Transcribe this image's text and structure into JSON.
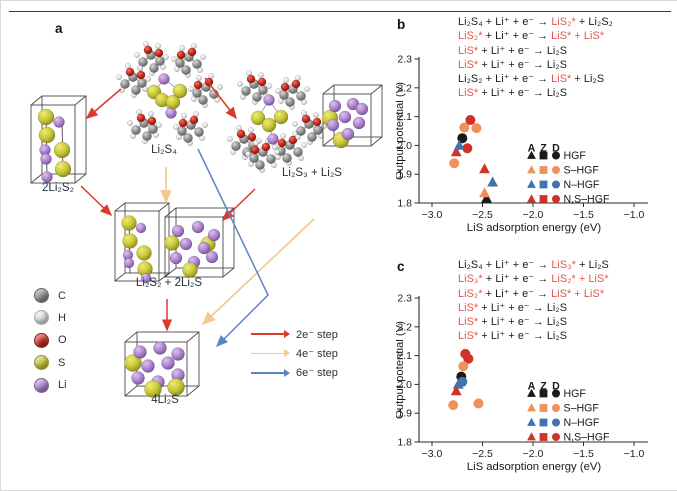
{
  "page": {
    "background": "#ffffff"
  },
  "colors": {
    "text_black": "#1a1a1a",
    "eq_red": "#E0564B",
    "label_dark": "#263238",
    "axis": "#2b2b2b",
    "hgf": "#1a1a1a",
    "s_hgf": "#F0915C",
    "n_hgf": "#4173AF",
    "ns_hgf": "#CF3327",
    "arrow_2e": "#D93A2B",
    "arrow_4e": "#F3C98F",
    "arrow_6e": "#5B84C7"
  },
  "panel_a": {
    "label": "a",
    "structure_labels": [
      {
        "id": "2li2s2",
        "text": "2Li₂S₂"
      },
      {
        "id": "li2s4",
        "text": "Li₂S₄"
      },
      {
        "id": "li2s3-li2s",
        "text": "Li₂S₃ + Li₂S"
      },
      {
        "id": "li2s2-2li2s",
        "text": "Li₂S₂ + 2Li₂S"
      },
      {
        "id": "4li2s",
        "text": "4Li₂S"
      }
    ],
    "atom_legend": [
      {
        "symbol": "C",
        "color": "#8E8E8E"
      },
      {
        "symbol": "H",
        "color": "#E3E3E3"
      },
      {
        "symbol": "O",
        "color": "#C6281C"
      },
      {
        "symbol": "S",
        "color": "#C9C838"
      },
      {
        "symbol": "Li",
        "color": "#AD85CE"
      }
    ],
    "arrow_legend": [
      {
        "label": "2e⁻ step",
        "color": "#D93A2B"
      },
      {
        "label": "4e⁻ step",
        "color": "#F3C98F"
      },
      {
        "label": "6e⁻ step",
        "color": "#5B84C7"
      }
    ]
  },
  "panel_b": {
    "label": "b"
  },
  "panel_c": {
    "label": "c"
  },
  "chart_data": [
    {
      "panel": "b",
      "type": "scatter",
      "xlabel": "LiS adsorption energy (eV)",
      "ylabel": "Output potential (V)",
      "xlim": [
        -3.0,
        -1.0
      ],
      "ylim": [
        1.8,
        2.3
      ],
      "grid": false,
      "xticks": [
        -3.0,
        -2.5,
        -2.0,
        -1.5,
        -1.0
      ],
      "xtick_labels": [
        "−3.0",
        "−2.5",
        "−2.0",
        "−1.5",
        "−1.0"
      ],
      "yticks": [
        1.8,
        1.9,
        2.0,
        2.1,
        2.2,
        2.3
      ],
      "ytick_labels": [
        "1.8",
        "1.9",
        "2.0",
        "2.1",
        "2.2",
        "2.3"
      ],
      "equations": [
        [
          {
            "t": "Li₂S₄ + Li⁺ + e⁻ → ",
            "c": "black"
          },
          {
            "t": "LiS₂*",
            "c": "red"
          },
          {
            "t": " + Li₂S₂",
            "c": "black"
          }
        ],
        [
          {
            "t": "LiS₂*",
            "c": "red"
          },
          {
            "t": " + Li⁺ + e⁻ → ",
            "c": "black"
          },
          {
            "t": "LiS* + LiS*",
            "c": "red"
          }
        ],
        [
          {
            "t": "LiS*",
            "c": "red"
          },
          {
            "t": " + Li⁺ + e⁻ → Li₂S",
            "c": "black"
          }
        ],
        [
          {
            "t": "LiS*",
            "c": "red"
          },
          {
            "t": " + Li⁺ + e⁻ → Li₂S",
            "c": "black"
          }
        ],
        [
          {
            "t": "Li₂S₂ + Li⁺ + e⁻ → ",
            "c": "black"
          },
          {
            "t": "LiS*",
            "c": "red"
          },
          {
            "t": " + Li₂S",
            "c": "black"
          }
        ],
        [
          {
            "t": "LiS*",
            "c": "red"
          },
          {
            "t": " + Li⁺ + e⁻ → Li₂S",
            "c": "black"
          }
        ]
      ],
      "legend": {
        "column_headers": [
          "A",
          "Z",
          "D"
        ],
        "column_markers": [
          "triangle",
          "square",
          "circle"
        ],
        "rows": [
          {
            "label": "HGF",
            "color": "#1a1a1a"
          },
          {
            "label": "S–HGF",
            "color": "#F0915C"
          },
          {
            "label": "N–HGF",
            "color": "#4173AF"
          },
          {
            "label": "N,S–HGF",
            "color": "#CF3327"
          }
        ]
      },
      "points": [
        {
          "marker": "circle",
          "series": "S–HGF",
          "x": -2.56,
          "y": 2.06
        },
        {
          "marker": "circle",
          "series": "S–HGF",
          "x": -2.68,
          "y": 2.062
        },
        {
          "marker": "circle",
          "series": "N,S–HGF",
          "x": -2.62,
          "y": 2.088
        },
        {
          "marker": "circle",
          "series": "HGF",
          "x": -2.7,
          "y": 2.025
        },
        {
          "marker": "circle",
          "series": "N,S–HGF",
          "x": -2.65,
          "y": 1.99
        },
        {
          "marker": "triangle",
          "series": "N,S–HGF",
          "x": -2.76,
          "y": 1.976
        },
        {
          "marker": "triangle",
          "series": "N–HGF",
          "x": -2.73,
          "y": 1.999
        },
        {
          "marker": "circle",
          "series": "S–HGF",
          "x": -2.78,
          "y": 1.938
        },
        {
          "marker": "triangle",
          "series": "N,S–HGF",
          "x": -2.48,
          "y": 1.917
        },
        {
          "marker": "triangle",
          "series": "N–HGF",
          "x": -2.4,
          "y": 1.871
        },
        {
          "marker": "triangle",
          "series": "HGF",
          "x": -2.46,
          "y": 1.815
        },
        {
          "marker": "triangle",
          "series": "S–HGF",
          "x": -2.48,
          "y": 1.834
        }
      ]
    },
    {
      "panel": "c",
      "type": "scatter",
      "xlabel": "LiS adsorption energy (eV)",
      "ylabel": "Output potential (V)",
      "xlim": [
        -3.0,
        -1.0
      ],
      "ylim": [
        1.8,
        2.3
      ],
      "grid": false,
      "xticks": [
        -3.0,
        -2.5,
        -2.0,
        -1.5,
        -1.0
      ],
      "xtick_labels": [
        "−3.0",
        "−2.5",
        "−2.0",
        "−1.5",
        "−1.0"
      ],
      "yticks": [
        1.8,
        1.9,
        2.0,
        2.1,
        2.2,
        2.3
      ],
      "ytick_labels": [
        "1.8",
        "1.9",
        "2.0",
        "2.1",
        "2.2",
        "2.3"
      ],
      "equations": [
        [
          {
            "t": "Li₂S₄ + Li⁺ + e⁻ → ",
            "c": "black"
          },
          {
            "t": "LiS₃*",
            "c": "red"
          },
          {
            "t": " + Li₂S",
            "c": "black"
          }
        ],
        [
          {
            "t": "LiS₃*",
            "c": "red"
          },
          {
            "t": " + Li⁺ + e⁻ → ",
            "c": "black"
          },
          {
            "t": "LiS₂* + LiS*",
            "c": "red"
          }
        ],
        [
          {
            "t": "LiS₂*",
            "c": "red"
          },
          {
            "t": " + Li⁺ + e⁻ → ",
            "c": "black"
          },
          {
            "t": "LiS* + LiS*",
            "c": "red"
          }
        ],
        [
          {
            "t": "LiS*",
            "c": "red"
          },
          {
            "t": " + Li⁺ + e⁻ → Li₂S",
            "c": "black"
          }
        ],
        [
          {
            "t": "LiS*",
            "c": "red"
          },
          {
            "t": " + Li⁺ + e⁻ → Li₂S",
            "c": "black"
          }
        ],
        [
          {
            "t": "LiS*",
            "c": "red"
          },
          {
            "t": " + Li⁺ + e⁻ → Li₂S",
            "c": "black"
          }
        ]
      ],
      "legend": {
        "column_headers": [
          "A",
          "Z",
          "D"
        ],
        "column_markers": [
          "triangle",
          "square",
          "circle"
        ],
        "rows": [
          {
            "label": "HGF",
            "color": "#1a1a1a"
          },
          {
            "label": "S–HGF",
            "color": "#F0915C"
          },
          {
            "label": "N–HGF",
            "color": "#4173AF"
          },
          {
            "label": "N,S–HGF",
            "color": "#CF3327"
          }
        ]
      },
      "points": [
        {
          "marker": "circle",
          "series": "N,S–HGF",
          "x": -2.67,
          "y": 2.106
        },
        {
          "marker": "circle",
          "series": "N,S–HGF",
          "x": -2.64,
          "y": 2.089
        },
        {
          "marker": "circle",
          "series": "S–HGF",
          "x": -2.69,
          "y": 2.063
        },
        {
          "marker": "circle",
          "series": "HGF",
          "x": -2.71,
          "y": 2.027
        },
        {
          "marker": "circle",
          "series": "N–HGF",
          "x": -2.7,
          "y": 2.009
        },
        {
          "marker": "triangle",
          "series": "N–HGF",
          "x": -2.74,
          "y": 1.999
        },
        {
          "marker": "triangle",
          "series": "N,S–HGF",
          "x": -2.76,
          "y": 1.976
        },
        {
          "marker": "circle",
          "series": "S–HGF",
          "x": -2.79,
          "y": 1.928
        },
        {
          "marker": "circle",
          "series": "S–HGF",
          "x": -2.54,
          "y": 1.934
        }
      ]
    }
  ]
}
